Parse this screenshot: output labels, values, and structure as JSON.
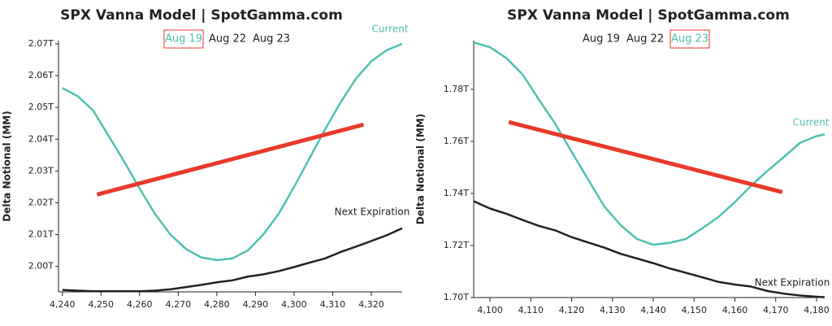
{
  "chart_data": [
    {
      "type": "line",
      "title": "SPX Vanna Model | SpotGamma.com",
      "tabs": [
        "Aug 19",
        "Aug 22",
        "Aug 23"
      ],
      "selected_tab": 0,
      "y_label": "Delta Notional (MM)",
      "x": [
        4240,
        4244,
        4248,
        4252,
        4256,
        4260,
        4264,
        4268,
        4272,
        4276,
        4280,
        4284,
        4288,
        4292,
        4296,
        4300,
        4304,
        4308,
        4312,
        4316,
        4320,
        4324,
        4328
      ],
      "series": [
        {
          "name": "Current",
          "color": "#4fc1b1",
          "values": [
            2.0561,
            2.0535,
            2.049,
            2.041,
            2.033,
            2.0245,
            2.0165,
            2.01,
            2.0055,
            2.0028,
            2.002,
            2.0025,
            2.005,
            2.01,
            2.0165,
            2.025,
            2.034,
            2.043,
            2.0515,
            2.059,
            2.0645,
            2.068,
            2.07
          ]
        },
        {
          "name": "Next Expiration",
          "color": "#222222",
          "values": [
            1.9926,
            1.9924,
            1.9922,
            1.9922,
            1.9922,
            1.9922,
            1.9924,
            1.9928,
            1.9935,
            1.9942,
            1.995,
            1.9956,
            1.9968,
            1.9975,
            1.9985,
            1.9998,
            2.0012,
            2.0025,
            2.0045,
            2.0062,
            2.008,
            2.0098,
            2.012
          ]
        }
      ],
      "trend_line": {
        "color": "#e8392a",
        "x": [
          4249,
          4318
        ],
        "values": [
          2.0226,
          2.0446
        ]
      },
      "xlim": [
        4239,
        4328
      ],
      "xticks": [
        {
          "value": 4240,
          "label": "4,240"
        },
        {
          "value": 4250,
          "label": "4,250"
        },
        {
          "value": 4260,
          "label": "4,260"
        },
        {
          "value": 4270,
          "label": "4,270"
        },
        {
          "value": 4280,
          "label": "4,280"
        },
        {
          "value": 4290,
          "label": "4,290"
        },
        {
          "value": 4300,
          "label": "4,300"
        },
        {
          "value": 4310,
          "label": "4,310"
        },
        {
          "value": 4320,
          "label": "4,320"
        }
      ],
      "ylim": [
        1.992,
        2.071
      ],
      "yticks": [
        {
          "value": 2.0,
          "label": "2.00T"
        },
        {
          "value": 2.01,
          "label": "2.01T"
        },
        {
          "value": 2.02,
          "label": "2.02T"
        },
        {
          "value": 2.03,
          "label": "2.03T"
        },
        {
          "value": 2.04,
          "label": "2.04T"
        },
        {
          "value": 2.05,
          "label": "2.05T"
        },
        {
          "value": 2.06,
          "label": "2.06T"
        },
        {
          "value": 2.07,
          "label": "2.07T"
        }
      ]
    },
    {
      "type": "line",
      "title": "SPX Vanna Model | SpotGamma.com",
      "tabs": [
        "Aug 19",
        "Aug 22",
        "Aug 23"
      ],
      "selected_tab": 2,
      "y_label": "Delta Notional (MM)",
      "x": [
        4096,
        4100,
        4104,
        4108,
        4112,
        4116,
        4120,
        4124,
        4128,
        4132,
        4136,
        4140,
        4144,
        4148,
        4152,
        4156,
        4160,
        4164,
        4168,
        4172,
        4176,
        4180,
        4182
      ],
      "series": [
        {
          "name": "Current",
          "color": "#4fc1b1",
          "values": [
            1.798,
            1.7962,
            1.792,
            1.7857,
            1.776,
            1.7667,
            1.756,
            1.7455,
            1.735,
            1.7278,
            1.7225,
            1.7203,
            1.721,
            1.7225,
            1.7266,
            1.731,
            1.7367,
            1.743,
            1.7487,
            1.754,
            1.7595,
            1.762,
            1.7627
          ]
        },
        {
          "name": "Next Expiration",
          "color": "#222222",
          "values": [
            1.737,
            1.7342,
            1.7322,
            1.7298,
            1.7275,
            1.7258,
            1.7232,
            1.7212,
            1.7192,
            1.7168,
            1.715,
            1.7132,
            1.7112,
            1.7095,
            1.7078,
            1.706,
            1.705,
            1.7042,
            1.7025,
            1.7015,
            1.7008,
            1.7003,
            1.7001
          ]
        }
      ],
      "trend_line": {
        "color": "#e8392a",
        "x": [
          4104.6,
          4171.6
        ],
        "values": [
          1.7674,
          1.7405
        ]
      },
      "xlim": [
        4096,
        4182
      ],
      "xticks": [
        {
          "value": 4100,
          "label": "4,100"
        },
        {
          "value": 4110,
          "label": "4,110"
        },
        {
          "value": 4120,
          "label": "4,120"
        },
        {
          "value": 4130,
          "label": "4,130"
        },
        {
          "value": 4140,
          "label": "4,140"
        },
        {
          "value": 4150,
          "label": "4,150"
        },
        {
          "value": 4160,
          "label": "4,160"
        },
        {
          "value": 4170,
          "label": "4,170"
        },
        {
          "value": 4180,
          "label": "4,180"
        }
      ],
      "ylim": [
        1.7,
        1.7987
      ],
      "yticks": [
        {
          "value": 1.7,
          "label": "1.70T"
        },
        {
          "value": 1.72,
          "label": "1.72T"
        },
        {
          "value": 1.74,
          "label": "1.74T"
        },
        {
          "value": 1.76,
          "label": "1.76T"
        },
        {
          "value": 1.78,
          "label": "1.78T"
        }
      ]
    }
  ]
}
